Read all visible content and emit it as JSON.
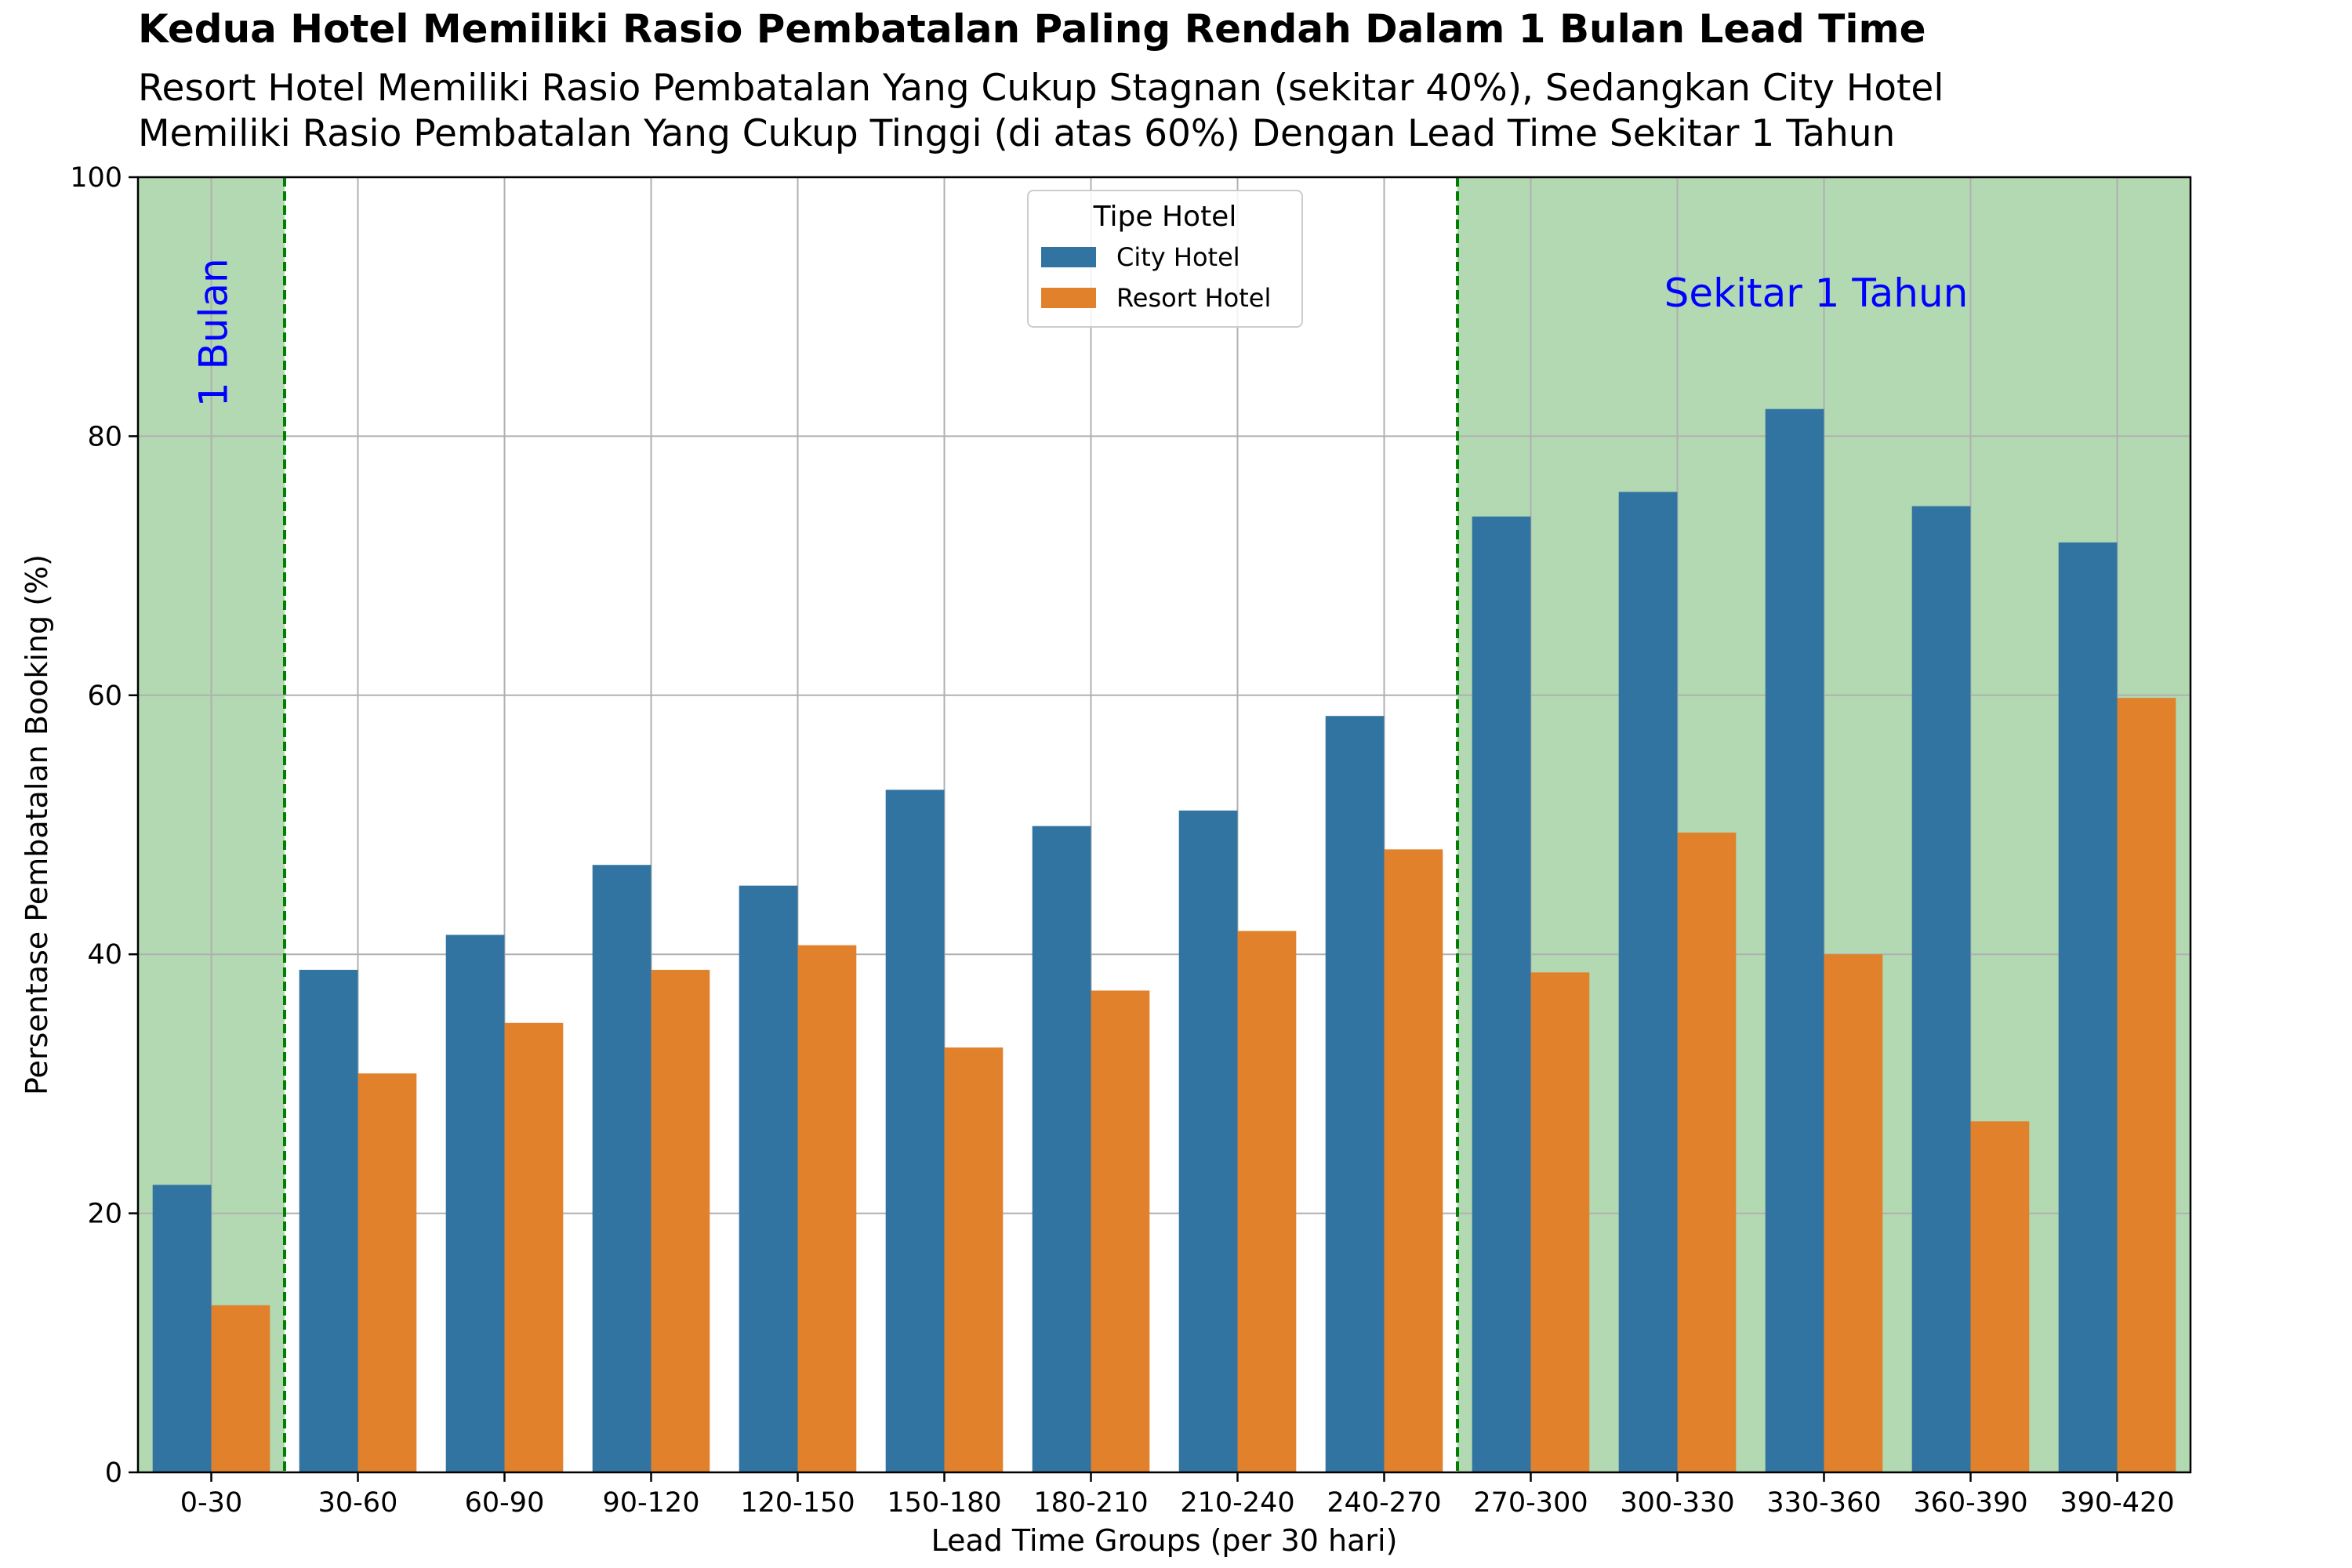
{
  "title": "Kedua Hotel Memiliki Rasio Pembatalan Paling Rendah Dalam 1 Bulan Lead Time",
  "subtitle_lines": [
    "Resort Hotel Memiliki Rasio Pembatalan Yang Cukup Stagnan (sekitar 40%), Sedangkan City Hotel",
    "Memiliki Rasio Pembatalan Yang Cukup Tinggi (di atas 60%) Dengan Lead Time Sekitar 1 Tahun"
  ],
  "colors": {
    "city": "#3274a1",
    "resort": "#e1812c",
    "highlight": "#b2d9b2",
    "divider": "#008000",
    "annotation": "#0000ff",
    "grid": "#b0b0b0"
  },
  "chart_data": {
    "type": "bar",
    "xlabel": "Lead Time Groups (per 30 hari)",
    "ylabel": "Persentase Pembatalan Booking (%)",
    "ylim": [
      0,
      100
    ],
    "yticks": [
      0,
      20,
      40,
      60,
      80,
      100
    ],
    "grid": true,
    "legend": {
      "title": "Tipe Hotel",
      "placement": "top-center"
    },
    "categories": [
      "0-30",
      "30-60",
      "60-90",
      "90-120",
      "120-150",
      "150-180",
      "180-210",
      "210-240",
      "240-270",
      "270-300",
      "300-330",
      "330-360",
      "360-390",
      "390-420"
    ],
    "series": [
      {
        "name": "City Hotel",
        "values": [
          22.2,
          38.8,
          41.5,
          46.9,
          45.3,
          52.7,
          49.9,
          51.1,
          58.4,
          73.8,
          75.7,
          82.1,
          74.6,
          71.8
        ]
      },
      {
        "name": "Resort Hotel",
        "values": [
          12.9,
          30.8,
          34.7,
          38.8,
          40.7,
          32.8,
          37.2,
          41.8,
          48.1,
          38.6,
          49.4,
          40.0,
          27.1,
          59.8
        ]
      }
    ],
    "annotations": [
      {
        "text": "1 Bulan",
        "region_categories": [
          "0-30"
        ]
      },
      {
        "text": "Sekitar 1 Tahun",
        "region_categories": [
          "270-300",
          "390-420"
        ]
      }
    ]
  }
}
